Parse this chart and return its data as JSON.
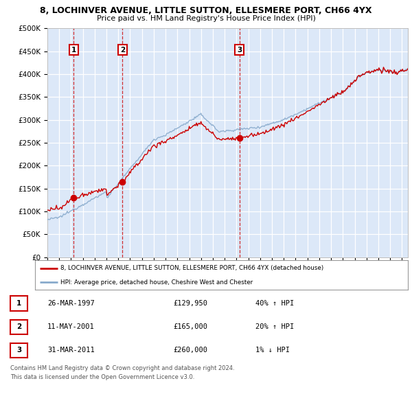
{
  "title_line1": "8, LOCHINVER AVENUE, LITTLE SUTTON, ELLESMERE PORT, CH66 4YX",
  "title_line2": "Price paid vs. HM Land Registry's House Price Index (HPI)",
  "ylim": [
    0,
    500000
  ],
  "yticks": [
    0,
    50000,
    100000,
    150000,
    200000,
    250000,
    300000,
    350000,
    400000,
    450000,
    500000
  ],
  "ytick_labels": [
    "£0",
    "£50K",
    "£100K",
    "£150K",
    "£200K",
    "£250K",
    "£300K",
    "£350K",
    "£400K",
    "£450K",
    "£500K"
  ],
  "plot_bg_color": "#dce8f8",
  "grid_color": "#ffffff",
  "red_line_color": "#cc0000",
  "blue_line_color": "#88aacc",
  "sale1_date": 1997.23,
  "sale1_price": 129950,
  "sale1_label": "1",
  "sale2_date": 2001.36,
  "sale2_price": 165000,
  "sale2_label": "2",
  "sale3_date": 2011.24,
  "sale3_price": 260000,
  "sale3_label": "3",
  "legend_red_label": "8, LOCHINVER AVENUE, LITTLE SUTTON, ELLESMERE PORT, CH66 4YX (detached house)",
  "legend_blue_label": "HPI: Average price, detached house, Cheshire West and Chester",
  "table_data": [
    [
      "1",
      "26-MAR-1997",
      "£129,950",
      "40% ↑ HPI"
    ],
    [
      "2",
      "11-MAY-2001",
      "£165,000",
      "20% ↑ HPI"
    ],
    [
      "3",
      "31-MAR-2011",
      "£260,000",
      "1% ↓ HPI"
    ]
  ],
  "footer_line1": "Contains HM Land Registry data © Crown copyright and database right 2024.",
  "footer_line2": "This data is licensed under the Open Government Licence v3.0.",
  "xmin": 1995,
  "xmax": 2025.5
}
